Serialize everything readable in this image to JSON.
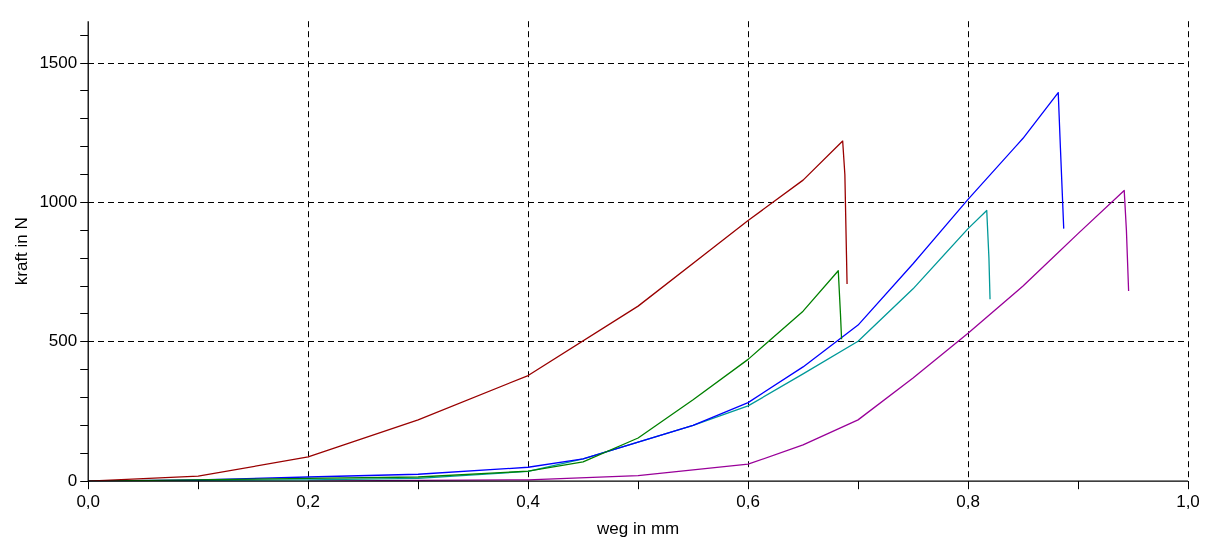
{
  "chart_data": {
    "type": "line",
    "xlabel": "weg in mm",
    "ylabel": "kraft in N",
    "xlim": [
      0,
      1.0
    ],
    "ylim": [
      0,
      1650
    ],
    "xticks": [
      {
        "value": 0,
        "label": "0,0"
      },
      {
        "value": 0.1,
        "label": null
      },
      {
        "value": 0.2,
        "label": "0,2"
      },
      {
        "value": 0.3,
        "label": null
      },
      {
        "value": 0.4,
        "label": "0,4"
      },
      {
        "value": 0.5,
        "label": null
      },
      {
        "value": 0.6,
        "label": "0,6"
      },
      {
        "value": 0.7,
        "label": null
      },
      {
        "value": 0.8,
        "label": "0,8"
      },
      {
        "value": 0.9,
        "label": null
      },
      {
        "value": 1.0,
        "label": "1,0"
      }
    ],
    "yticks": [
      0,
      {
        "value": 100,
        "label": null
      },
      {
        "value": 200,
        "label": null
      },
      {
        "value": 300,
        "label": null
      },
      {
        "value": 400,
        "label": null
      },
      500,
      {
        "value": 600,
        "label": null
      },
      {
        "value": 700,
        "label": null
      },
      {
        "value": 800,
        "label": null
      },
      {
        "value": 900,
        "label": null
      },
      1000,
      {
        "value": 1100,
        "label": null
      },
      {
        "value": 1200,
        "label": null
      },
      {
        "value": 1300,
        "label": null
      },
      {
        "value": 1400,
        "label": null
      },
      1500,
      {
        "value": 1600,
        "label": null
      }
    ],
    "grid": true,
    "line_style": "solid",
    "marker": "none",
    "legend": false,
    "series": [
      {
        "color": "#990000",
        "x": [
          0,
          0.1,
          0.2,
          0.3,
          0.4,
          0.5,
          0.6,
          0.65,
          0.686,
          0.688,
          0.69
        ],
        "values": [
          0,
          18,
          87,
          220,
          379,
          628,
          935,
          1080,
          1220,
          1100,
          707
        ]
      },
      {
        "color": "#008000",
        "x": [
          0,
          0.2,
          0.3,
          0.4,
          0.45,
          0.5,
          0.55,
          0.6,
          0.65,
          0.682,
          0.684,
          0.685
        ],
        "values": [
          0,
          10,
          15,
          36,
          69,
          155,
          292,
          437,
          610,
          755,
          600,
          509
        ]
      },
      {
        "color": "#0000ff",
        "x": [
          0,
          0.1,
          0.2,
          0.3,
          0.4,
          0.45,
          0.5,
          0.55,
          0.6,
          0.65,
          0.7,
          0.75,
          0.8,
          0.85,
          0.882,
          0.884,
          0.887
        ],
        "values": [
          0,
          5,
          15,
          25,
          50,
          80,
          140,
          200,
          282,
          410,
          560,
          780,
          1011,
          1230,
          1394,
          1195,
          906
        ]
      },
      {
        "color": "#009999",
        "x": [
          0,
          0.2,
          0.3,
          0.4,
          0.45,
          0.5,
          0.55,
          0.6,
          0.65,
          0.7,
          0.75,
          0.8,
          0.817,
          0.819,
          0.82
        ],
        "values": [
          0,
          5,
          10,
          35,
          80,
          140,
          200,
          270,
          385,
          502,
          690,
          906,
          971,
          800,
          653
        ]
      },
      {
        "color": "#990099",
        "x": [
          0.2,
          0.3,
          0.4,
          0.5,
          0.6,
          0.65,
          0.7,
          0.75,
          0.8,
          0.85,
          0.9,
          0.942,
          0.944,
          0.946
        ],
        "values": [
          0,
          3,
          5,
          20,
          61,
          130,
          220,
          370,
          531,
          700,
          888,
          1043,
          900,
          682
        ]
      }
    ]
  }
}
